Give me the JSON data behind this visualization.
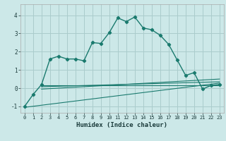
{
  "xlabel": "Humidex (Indice chaleur)",
  "bg_color": "#cce8e8",
  "grid_color": "#aacccc",
  "line_color": "#1a7a6e",
  "xlim": [
    -0.5,
    23.5
  ],
  "ylim": [
    -1.35,
    4.6
  ],
  "xticks": [
    0,
    1,
    2,
    3,
    4,
    5,
    6,
    7,
    8,
    9,
    10,
    11,
    12,
    13,
    14,
    15,
    16,
    17,
    18,
    19,
    20,
    21,
    22,
    23
  ],
  "yticks": [
    -1,
    0,
    1,
    2,
    3,
    4
  ],
  "main_curve_x": [
    0,
    1,
    2,
    3,
    4,
    5,
    6,
    7,
    8,
    9,
    10,
    11,
    12,
    13,
    14,
    15,
    16,
    17,
    18,
    19,
    20,
    21,
    22,
    23
  ],
  "main_curve_y": [
    -1.0,
    -0.35,
    0.2,
    1.6,
    1.75,
    1.6,
    1.6,
    1.5,
    2.5,
    2.45,
    3.05,
    3.85,
    3.65,
    3.9,
    3.3,
    3.2,
    2.9,
    2.4,
    1.55,
    0.7,
    0.85,
    -0.05,
    0.15,
    0.2
  ],
  "flat_line_x": [
    2,
    23
  ],
  "flat_line_y": [
    0.15,
    0.15
  ],
  "diag_line1_x": [
    2,
    23
  ],
  "diag_line1_y": [
    0.08,
    0.35
  ],
  "diag_line2_x": [
    2,
    23
  ],
  "diag_line2_y": [
    -0.05,
    0.5
  ],
  "diag_line3_x": [
    0,
    23
  ],
  "diag_line3_y": [
    -1.05,
    0.28
  ]
}
